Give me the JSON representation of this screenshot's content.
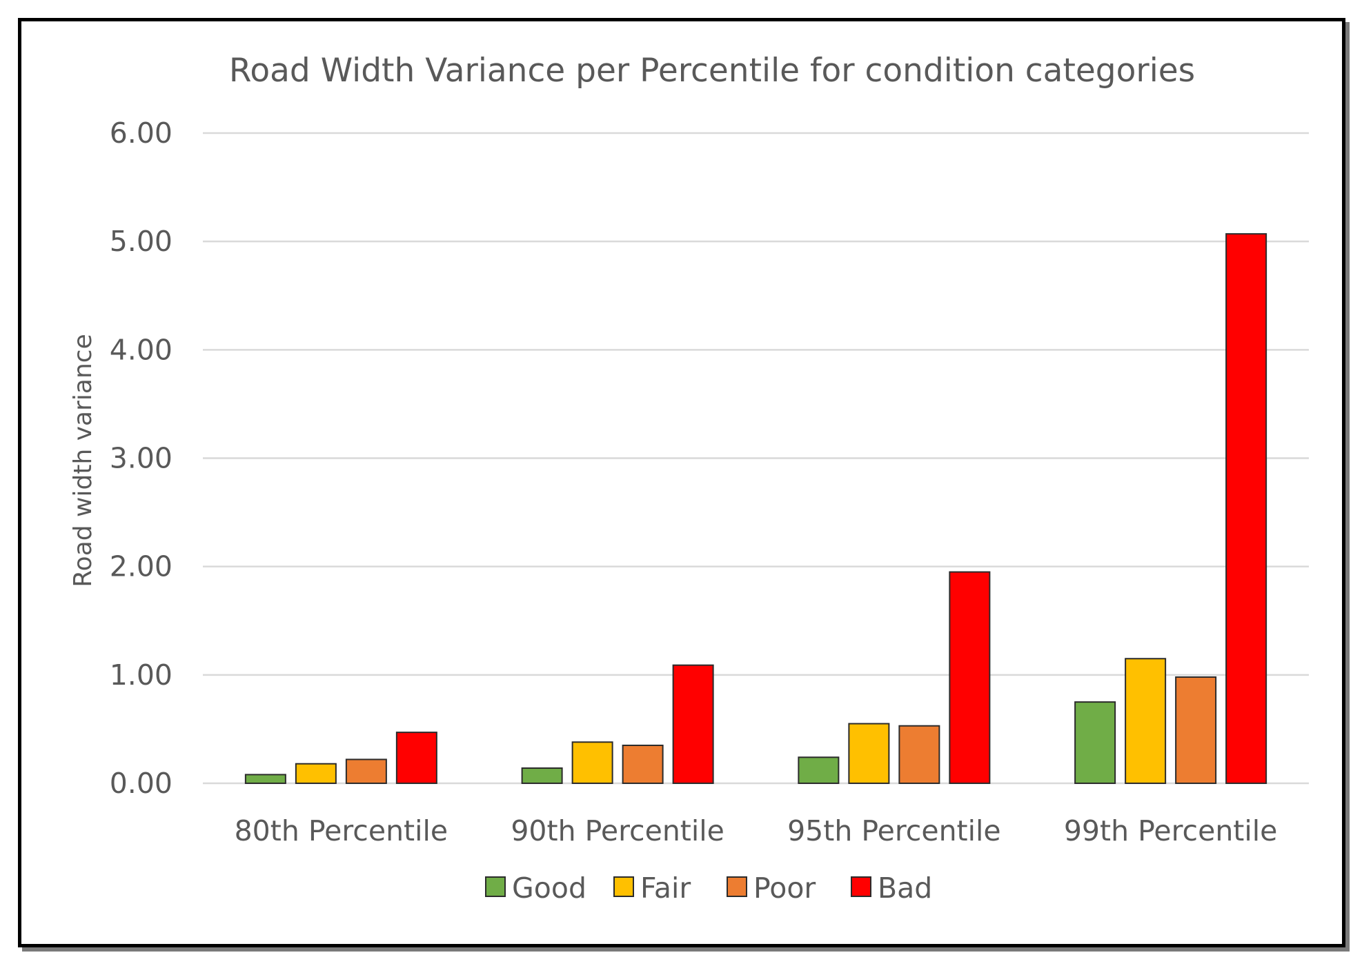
{
  "chart_data": {
    "type": "bar",
    "title": "Road Width Variance per Percentile for condition categories",
    "xlabel": "",
    "ylabel": "Road width variance",
    "ylim": [
      0,
      6
    ],
    "yticks": [
      0,
      1,
      2,
      3,
      4,
      5,
      6
    ],
    "ytick_labels": [
      "0.00",
      "1.00",
      "2.00",
      "3.00",
      "4.00",
      "5.00",
      "6.00"
    ],
    "grid": true,
    "legend_position": "bottom",
    "categories": [
      "80th Percentile",
      "90th Percentile",
      "95th Percentile",
      "99th Percentile"
    ],
    "series": [
      {
        "name": "Good",
        "color": "#70ad47",
        "values": [
          0.08,
          0.14,
          0.24,
          0.75
        ]
      },
      {
        "name": "Fair",
        "color": "#ffc000",
        "values": [
          0.18,
          0.38,
          0.55,
          1.15
        ]
      },
      {
        "name": "Poor",
        "color": "#ed7d31",
        "values": [
          0.22,
          0.35,
          0.53,
          0.98
        ]
      },
      {
        "name": "Bad",
        "color": "#ff0000",
        "values": [
          0.47,
          1.09,
          1.95,
          5.07
        ]
      }
    ]
  }
}
